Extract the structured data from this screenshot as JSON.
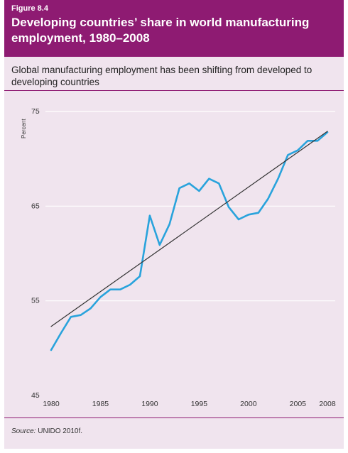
{
  "figure": {
    "label": "Figure 8.4",
    "title": "Developing countries’ share in world manufacturing employment, 1980–2008",
    "subtitle": "Global manufacturing employment has been shifting from developed to developing countries",
    "source_label": "Source:",
    "source_text": " UNIDO 2010f."
  },
  "colors": {
    "header_bg": "#8e1b72",
    "panel_bg": "#f0e4ee",
    "series": "#29a3dc",
    "trend": "#333333",
    "grid": "#ffffff"
  },
  "chart_data": {
    "type": "line",
    "title": "Developing countries’ share in world manufacturing employment, 1980–2008",
    "xlabel": "",
    "ylabel": "Percent",
    "xlim": [
      1980,
      2008
    ],
    "ylim": [
      45,
      75
    ],
    "yticks": [
      45,
      55,
      65,
      75
    ],
    "xticks": [
      1980,
      1985,
      1990,
      1995,
      2000,
      2005,
      2008
    ],
    "grid": true,
    "series": [
      {
        "role": "data",
        "x": [
          1980,
          1981,
          1982,
          1983,
          1984,
          1985,
          1986,
          1987,
          1988,
          1989,
          1990,
          1991,
          1992,
          1993,
          1994,
          1995,
          1996,
          1997,
          1998,
          1999,
          2000,
          2001,
          2002,
          2003,
          2004,
          2005,
          2006,
          2007,
          2008
        ],
        "y": [
          49.8,
          51.6,
          53.3,
          53.5,
          54.2,
          55.4,
          56.2,
          56.2,
          56.7,
          57.6,
          64.0,
          60.9,
          63.1,
          66.9,
          67.4,
          66.6,
          67.9,
          67.4,
          64.9,
          63.6,
          64.1,
          64.3,
          65.8,
          67.9,
          70.4,
          70.9,
          71.9,
          71.9,
          72.8
        ],
        "color": "#29a3dc"
      },
      {
        "role": "trend",
        "x": [
          1980,
          2008
        ],
        "y": [
          52.3,
          72.9
        ],
        "color": "#333333"
      }
    ]
  }
}
